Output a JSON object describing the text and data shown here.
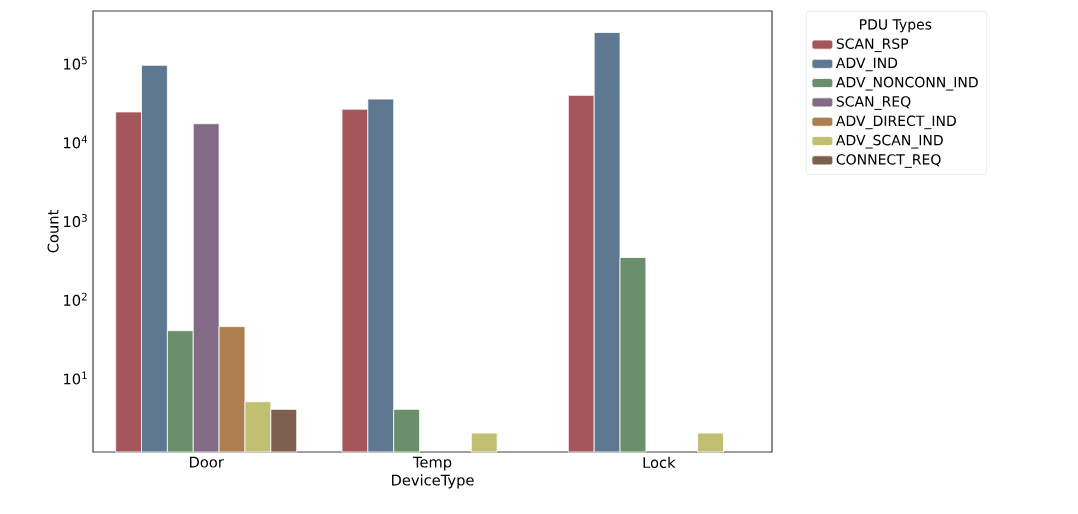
{
  "chart_data": {
    "type": "bar",
    "xlabel": "DeviceType",
    "ylabel": "Count",
    "legend_title": "PDU Types",
    "categories": [
      "Door",
      "Temp",
      "Lock"
    ],
    "series": [
      {
        "name": "SCAN_RSP",
        "color": "#a5565a",
        "values": [
          24000,
          26000,
          39000
        ]
      },
      {
        "name": "ADV_IND",
        "color": "#5e7891",
        "values": [
          94000,
          35000,
          245000
        ]
      },
      {
        "name": "ADV_NONCONN_IND",
        "color": "#6a8f6a",
        "values": [
          40,
          4,
          340
        ]
      },
      {
        "name": "SCAN_REQ",
        "color": "#836a86",
        "values": [
          17000,
          null,
          null
        ]
      },
      {
        "name": "ADV_DIRECT_IND",
        "color": "#ad7e4f",
        "values": [
          45,
          null,
          null
        ]
      },
      {
        "name": "ADV_SCAN_IND",
        "color": "#c0bf72",
        "values": [
          5,
          2,
          2
        ]
      },
      {
        "name": "CONNECT_REQ",
        "color": "#7d5f4d",
        "values": [
          4,
          null,
          null
        ]
      }
    ],
    "log": "y",
    "ylim": [
      1.15,
      460000
    ],
    "yticks": [
      {
        "value": 10,
        "label": "10$^{1}$"
      },
      {
        "value": 100,
        "label": "10$^{2}$"
      },
      {
        "value": 1000,
        "label": "10$^{3}$"
      },
      {
        "value": 10000,
        "label": "10$^{4}$"
      },
      {
        "value": 100000,
        "label": "10$^{5}$"
      }
    ],
    "grid": false,
    "legend": "top right"
  }
}
